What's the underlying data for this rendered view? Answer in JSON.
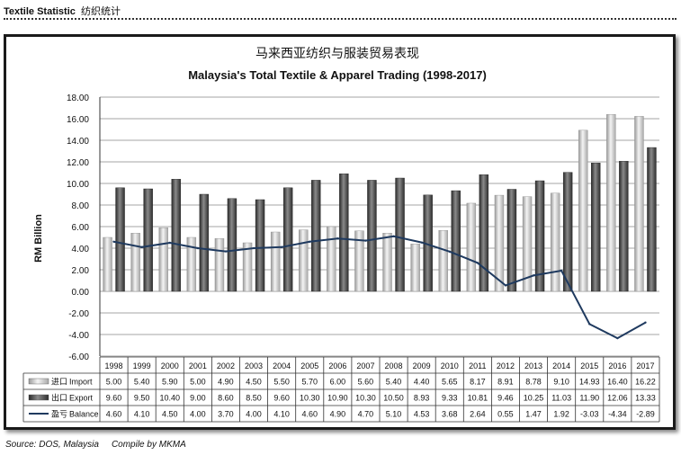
{
  "header": {
    "title": "Textile Statistic",
    "title_cn": "纺织统计"
  },
  "footer": {
    "source": "Source: DOS, Malaysia",
    "compiler": "Compile by MKMA"
  },
  "colors": {
    "import": "#d9d9d9",
    "export": "#4a4a4a",
    "balance": "#1f3a5f",
    "grid": "#888888"
  },
  "chart_data": {
    "type": "bar",
    "title_cn": "马来西亚纺织与服装贸易表现",
    "title": "Malaysia's Total Textile & Apparel Trading (1998-2017)",
    "ylabel": "RM Billion",
    "xlabel": "",
    "ylim": [
      -6,
      18
    ],
    "yticks": [
      "-6.00",
      "-4.00",
      "-2.00",
      "0.00",
      "2.00",
      "4.00",
      "6.00",
      "8.00",
      "10.00",
      "12.00",
      "14.00",
      "16.00",
      "18.00"
    ],
    "grid": true,
    "categories": [
      "1998",
      "1999",
      "2000",
      "2001",
      "2002",
      "2003",
      "2004",
      "2005",
      "2006",
      "2007",
      "2008",
      "2009",
      "2010",
      "2011",
      "2012",
      "2013",
      "2014",
      "2015",
      "2016",
      "2017"
    ],
    "series": [
      {
        "name_cn": "进口",
        "name": "Import",
        "kind": "bar",
        "values": [
          5.0,
          5.4,
          5.9,
          5.0,
          4.9,
          4.5,
          5.5,
          5.7,
          6.0,
          5.6,
          5.4,
          4.4,
          5.65,
          8.17,
          8.91,
          8.78,
          9.1,
          14.93,
          16.4,
          16.22
        ],
        "labels": [
          "5.00",
          "5.40",
          "5.90",
          "5.00",
          "4.90",
          "4.50",
          "5.50",
          "5.70",
          "6.00",
          "5.60",
          "5.40",
          "4.40",
          "5.65",
          "8.17",
          "8.91",
          "8.78",
          "9.10",
          "14.93",
          "16.40",
          "16.22"
        ]
      },
      {
        "name_cn": "出口",
        "name": "Export",
        "kind": "bar",
        "values": [
          9.6,
          9.5,
          10.4,
          9.0,
          8.6,
          8.5,
          9.6,
          10.3,
          10.9,
          10.3,
          10.5,
          8.93,
          9.33,
          10.81,
          9.46,
          10.25,
          11.03,
          11.9,
          12.06,
          13.33
        ],
        "labels": [
          "9.60",
          "9.50",
          "10.40",
          "9.00",
          "8.60",
          "8.50",
          "9.60",
          "10.30",
          "10.90",
          "10.30",
          "10.50",
          "8.93",
          "9.33",
          "10.81",
          "9.46",
          "10.25",
          "11.03",
          "11.90",
          "12.06",
          "13.33"
        ]
      },
      {
        "name_cn": "盈亏",
        "name": "Balance",
        "kind": "line",
        "values": [
          4.6,
          4.1,
          4.5,
          4.0,
          3.7,
          4.0,
          4.1,
          4.6,
          4.9,
          4.7,
          5.1,
          4.53,
          3.68,
          2.64,
          0.55,
          1.47,
          1.92,
          -3.03,
          -4.34,
          -2.89
        ],
        "labels": [
          "4.60",
          "4.10",
          "4.50",
          "4.00",
          "3.70",
          "4.00",
          "4.10",
          "4.60",
          "4.90",
          "4.70",
          "5.10",
          "4.53",
          "3.68",
          "2.64",
          "0.55",
          "1.47",
          "1.92",
          "-3.03",
          "-4.34",
          "-2.89"
        ]
      }
    ]
  }
}
